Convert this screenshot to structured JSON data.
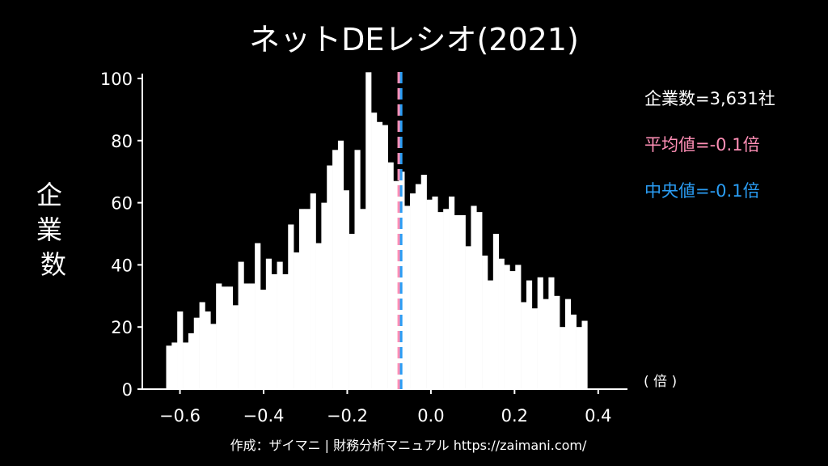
{
  "chart_data": {
    "type": "bar",
    "title": "ネットDEレシオ(2021)",
    "ylabel": "企業数",
    "xunit": "( 倍 )",
    "xlim": [
      -0.69,
      0.47
    ],
    "ylim": [
      0,
      100
    ],
    "xticks": [
      -0.6,
      -0.4,
      -0.2,
      0.0,
      0.2,
      0.4
    ],
    "xtick_labels": [
      "−0.6",
      "−0.4",
      "−0.2",
      "0.0",
      "0.2",
      "0.4"
    ],
    "yticks": [
      0,
      20,
      40,
      60,
      80,
      100
    ],
    "ytick_labels": [
      "0",
      "20",
      "40",
      "60",
      "80",
      "100"
    ],
    "bin_start": -0.633,
    "bin_width": 0.01325,
    "counts": [
      14,
      15,
      25,
      15,
      18,
      23,
      28,
      25,
      21,
      34,
      33,
      33,
      27,
      41,
      34,
      34,
      47,
      32,
      42,
      37,
      41,
      37,
      53,
      44,
      58,
      58,
      63,
      47,
      60,
      72,
      77,
      80,
      64,
      50,
      77,
      58,
      102,
      89,
      86,
      85,
      73,
      67,
      70,
      59,
      63,
      66,
      69,
      61,
      62,
      57,
      58,
      62,
      56,
      56,
      46,
      59,
      57,
      43,
      35,
      50,
      42,
      40,
      38,
      40,
      28,
      35,
      26,
      36,
      29,
      36,
      30,
      20,
      29,
      24,
      20,
      22
    ],
    "mean": -0.077,
    "median": -0.072,
    "colors": {
      "bars": "#ffffff",
      "mean": "#ff8fb6",
      "median": "#2a9df4",
      "background": "#000000"
    },
    "annotations": {
      "count": "企業数=3,631社",
      "mean": "平均値=-0.1倍",
      "median": "中央値=-0.1倍"
    },
    "footer": "作成：ザイマニ | 財務分析マニュアル https://zaimani.com/"
  }
}
